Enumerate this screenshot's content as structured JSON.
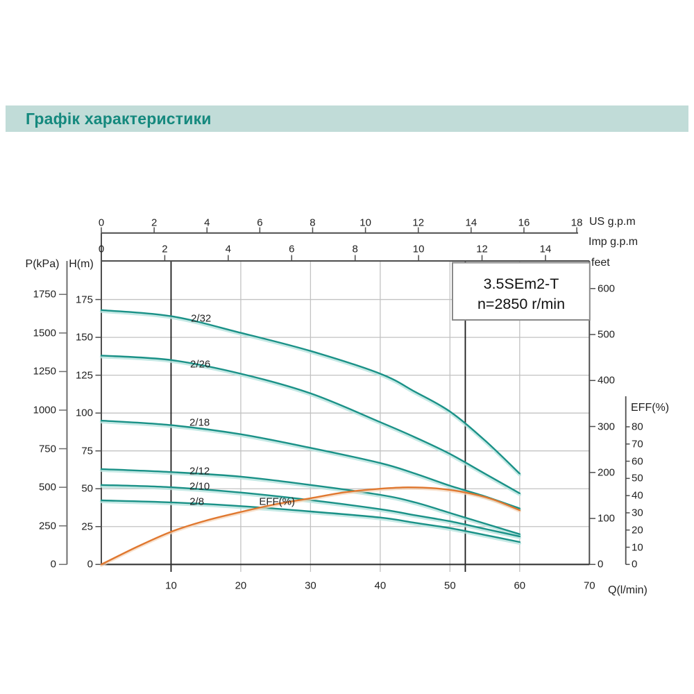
{
  "header": {
    "title": "Графік характеристики"
  },
  "colors": {
    "banner_bg": "#c1dcd8",
    "title_text": "#15897e",
    "curve_teal": "#1a9187",
    "curve_teal_glow": "#b7e3de",
    "curve_orange": "#e07830",
    "curve_orange_glow": "#f5d4b8",
    "gridline": "#c2c2c2",
    "axis": "#4d4d4d",
    "p_axis": "#6e6e6e",
    "marker_line": "#1c1c1c",
    "box_border": "#8a8a8a"
  },
  "chart_data": {
    "type": "line",
    "model_box": {
      "line1": "3.5SEm2-T",
      "line2": "n=2850 r/min"
    },
    "axes": {
      "q": {
        "label": "Q(l/min)",
        "min": 0,
        "max": 70,
        "ticks": [
          10,
          20,
          30,
          40,
          50,
          60,
          70
        ]
      },
      "us_gpm": {
        "label": "US  g.p.m",
        "min": 0,
        "max": 18,
        "ticks": [
          0,
          2,
          4,
          6,
          8,
          10,
          12,
          14,
          16,
          18
        ]
      },
      "imp_gpm": {
        "label": "Imp  g.p.m",
        "min": 0,
        "max": 14,
        "ticks": [
          0,
          2,
          4,
          6,
          8,
          10,
          12,
          14
        ]
      },
      "p_kpa": {
        "label": "P(kPa)",
        "min": 0,
        "max": 1750,
        "ticks": [
          0,
          250,
          500,
          750,
          1000,
          1250,
          1500,
          1750
        ]
      },
      "h_m": {
        "label": "H(m)",
        "min": 0,
        "max": 175,
        "ticks": [
          0,
          25,
          50,
          75,
          100,
          125,
          150,
          175
        ]
      },
      "feet": {
        "label": "feet",
        "min": 0,
        "max": 600,
        "ticks": [
          0,
          100,
          200,
          300,
          400,
          500,
          600
        ]
      },
      "eff": {
        "label": "EFF(%)",
        "min": 0,
        "max": 80,
        "ticks": [
          0,
          10,
          20,
          30,
          40,
          50,
          60,
          70,
          80
        ]
      }
    },
    "grid": {
      "vertical_q": [
        20,
        30,
        40,
        50,
        60
      ],
      "horizontal_h": [
        25,
        50,
        75,
        100,
        125,
        150,
        175
      ]
    },
    "marker_lines_q": [
      10,
      52.2
    ],
    "series": [
      {
        "name": "2/32",
        "label_at": [
          14.3,
          162.5
        ],
        "points": [
          [
            0,
            168
          ],
          [
            10,
            164
          ],
          [
            20,
            153
          ],
          [
            30,
            141
          ],
          [
            40,
            126
          ],
          [
            45,
            114
          ],
          [
            50,
            101
          ],
          [
            55,
            82
          ],
          [
            60,
            60
          ]
        ]
      },
      {
        "name": "2/26",
        "label_at": [
          14.2,
          132
        ],
        "points": [
          [
            0,
            138
          ],
          [
            10,
            135
          ],
          [
            20,
            126
          ],
          [
            30,
            113
          ],
          [
            40,
            94
          ],
          [
            45,
            84
          ],
          [
            50,
            73
          ],
          [
            55,
            60
          ],
          [
            60,
            47
          ]
        ]
      },
      {
        "name": "2/18",
        "label_at": [
          14.1,
          93.5
        ],
        "points": [
          [
            0,
            95
          ],
          [
            10,
            92
          ],
          [
            20,
            86
          ],
          [
            30,
            77
          ],
          [
            40,
            67
          ],
          [
            45,
            60
          ],
          [
            50,
            52
          ],
          [
            55,
            45
          ],
          [
            60,
            37
          ]
        ]
      },
      {
        "name": "2/12",
        "label_at": [
          14.1,
          61.5
        ],
        "points": [
          [
            0,
            63
          ],
          [
            10,
            61
          ],
          [
            20,
            58
          ],
          [
            30,
            52.5
          ],
          [
            40,
            46
          ],
          [
            45,
            41
          ],
          [
            50,
            34
          ],
          [
            55,
            27
          ],
          [
            60,
            20
          ]
        ]
      },
      {
        "name": "2/10",
        "label_at": [
          14.1,
          51.5
        ],
        "points": [
          [
            0,
            52.5
          ],
          [
            10,
            51
          ],
          [
            20,
            47.5
          ],
          [
            30,
            42.5
          ],
          [
            40,
            36.5
          ],
          [
            45,
            32.5
          ],
          [
            50,
            28.5
          ],
          [
            55,
            23.5
          ],
          [
            60,
            18.5
          ]
        ]
      },
      {
        "name": "2/8",
        "label_at": [
          13.7,
          41.5
        ],
        "points": [
          [
            0,
            42.3
          ],
          [
            10,
            41
          ],
          [
            20,
            38.5
          ],
          [
            30,
            35
          ],
          [
            40,
            31
          ],
          [
            45,
            27.5
          ],
          [
            50,
            24
          ],
          [
            55,
            19.5
          ],
          [
            60,
            14.8
          ]
        ]
      }
    ],
    "eff_series": {
      "name": "EFF(%)",
      "label_at": [
        25.2,
        41.4
      ],
      "points": [
        [
          0,
          0
        ],
        [
          5,
          10
        ],
        [
          10,
          19
        ],
        [
          15,
          25.5
        ],
        [
          20,
          30.5
        ],
        [
          25,
          35
        ],
        [
          30,
          38.5
        ],
        [
          35,
          42
        ],
        [
          40,
          44
        ],
        [
          44,
          44.8
        ],
        [
          48,
          44.2
        ],
        [
          52,
          42
        ],
        [
          56,
          38
        ],
        [
          60,
          31.5
        ]
      ]
    }
  }
}
